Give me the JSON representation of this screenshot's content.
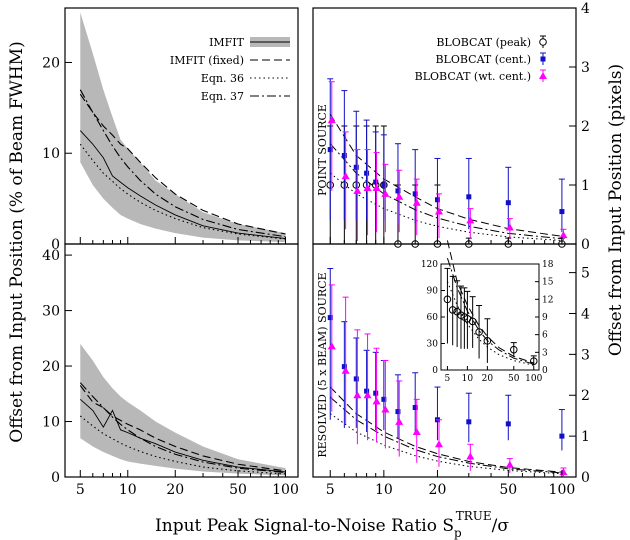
{
  "figure": {
    "xlabel": "Input Peak Signal-to-Noise Ratio S",
    "xlabel_sup": "TRUE",
    "xlabel_sub": "p",
    "xlabel_tail": "/σ",
    "ylabel_left": "Offset from Input Position (% of Beam FWHM)",
    "ylabel_right": "Offset from Input Position (pixels)",
    "panel_label_top": "POINT SOURCE",
    "panel_label_bottom": "RESOLVED (5 x BEAM) SOURCE",
    "x_ticks": [
      "5",
      "10",
      "20",
      "50",
      "100"
    ]
  },
  "colors": {
    "band": "#b8b8b8",
    "cent": "#1010c8",
    "wtcent": "#ff00ff",
    "peak": "#000000"
  },
  "chart_data": [
    {
      "type": "line",
      "panel": "top-left",
      "x_scale": "log",
      "xlim": [
        4,
        120
      ],
      "ylim": [
        0,
        26
      ],
      "y_ticks": [
        "0",
        "10",
        "20"
      ],
      "legend": [
        {
          "label": "IMFIT",
          "style": "band"
        },
        {
          "label": "IMFIT (fixed)",
          "style": "dashed"
        },
        {
          "label": "Eqn. 36",
          "style": "dotted"
        },
        {
          "label": "Eqn. 37",
          "style": "dashdot"
        }
      ],
      "x": [
        5,
        6,
        7,
        8,
        9,
        10,
        12,
        15,
        20,
        30,
        50,
        100
      ],
      "band_lower": [
        9,
        6.5,
        5,
        4,
        3.2,
        2.8,
        2.2,
        1.7,
        1.2,
        0.7,
        0.4,
        0.2
      ],
      "band_upper": [
        25.5,
        21,
        17,
        14,
        11.5,
        10.5,
        9,
        7,
        5.5,
        3.5,
        2.2,
        1.2
      ],
      "series": [
        {
          "name": "IMFIT",
          "style": "solid",
          "values": [
            12.5,
            11,
            9.5,
            7.5,
            6.8,
            6.2,
            5.3,
            4.3,
            3.2,
            2,
            1.2,
            0.6
          ]
        },
        {
          "name": "IMFIT (fixed)",
          "style": "dashed",
          "values": [
            16.5,
            14.5,
            13,
            12,
            11,
            10.5,
            9,
            7.3,
            5.5,
            3.7,
            2.2,
            1.1
          ]
        },
        {
          "name": "Eqn. 36",
          "style": "dotted",
          "values": [
            11,
            9.2,
            7.8,
            6.9,
            6.1,
            5.5,
            4.6,
            3.7,
            2.8,
            1.8,
            1.1,
            0.55
          ]
        },
        {
          "name": "Eqn. 37",
          "style": "dashdot",
          "values": [
            17,
            14.5,
            12.5,
            10.8,
            9.5,
            8.5,
            7,
            5.5,
            4.1,
            2.7,
            1.6,
            0.8
          ]
        }
      ]
    },
    {
      "type": "scatter",
      "panel": "top-right",
      "x_scale": "log",
      "xlim": [
        4,
        120
      ],
      "ylim": [
        0,
        4
      ],
      "y_ticks": [
        "0",
        "1",
        "2",
        "3",
        "4"
      ],
      "legend": [
        {
          "label": "BLOBCAT (peak)",
          "marker": "open-circle"
        },
        {
          "label": "BLOBCAT (cent.)",
          "marker": "square"
        },
        {
          "label": "BLOBCAT (wt. cent.)",
          "marker": "triangle"
        }
      ],
      "series": [
        {
          "name": "BLOBCAT (peak)",
          "x": [
            5,
            6,
            7,
            8,
            9,
            10,
            12,
            15,
            20,
            30,
            50,
            100
          ],
          "values": [
            1,
            1,
            1,
            1,
            1,
            1,
            0,
            0,
            0,
            0,
            0,
            0
          ],
          "err_low": [
            1,
            1,
            1,
            1,
            1,
            1,
            0,
            0,
            0,
            0,
            0,
            0
          ],
          "err_high": [
            1,
            1,
            1,
            1,
            1,
            1,
            1,
            1,
            1,
            0.1,
            0.1,
            0.1
          ]
        },
        {
          "name": "BLOBCAT (cent.)",
          "x": [
            5,
            6,
            7,
            8,
            9,
            10,
            12,
            15,
            20,
            30,
            50,
            100
          ],
          "values": [
            1.6,
            1.5,
            1.3,
            1.2,
            1.05,
            1,
            0.9,
            0.85,
            0.75,
            0.8,
            0.7,
            0.55
          ],
          "err_low": [
            1.2,
            1.1,
            0.9,
            0.8,
            0.7,
            0.6,
            0.55,
            0.5,
            0.45,
            0.55,
            0.45,
            0.35
          ],
          "err_high": [
            1.2,
            1.1,
            0.95,
            0.9,
            0.85,
            0.85,
            0.8,
            0.75,
            0.7,
            0.65,
            0.6,
            0.55
          ]
        },
        {
          "name": "BLOBCAT (wt. cent.)",
          "x": [
            5.1,
            6.1,
            7.1,
            8.1,
            9.1,
            10.2,
            12.2,
            15.3,
            20.4,
            30.6,
            51,
            102
          ],
          "values": [
            2.1,
            1.15,
            0.9,
            0.95,
            0.95,
            0.85,
            0.8,
            0.7,
            0.55,
            0.4,
            0.28,
            0.15
          ],
          "err_low": [
            1.2,
            0.9,
            0.85,
            0.8,
            0.75,
            0.65,
            0.6,
            0.55,
            0.45,
            0.3,
            0.2,
            0.12
          ],
          "err_high": [
            0.65,
            0.75,
            0.7,
            0.65,
            0.6,
            0.5,
            0.45,
            0.4,
            0.3,
            0.2,
            0.15,
            0.1
          ]
        }
      ],
      "curves": [
        {
          "style": "dashed",
          "values_x": [
            5,
            7,
            10,
            15,
            20,
            30,
            50,
            100
          ],
          "values": [
            2.2,
            1.5,
            1.1,
            0.8,
            0.6,
            0.42,
            0.26,
            0.13
          ]
        },
        {
          "style": "dashdot",
          "values_x": [
            5,
            7,
            10,
            15,
            20,
            30,
            50,
            100
          ],
          "values": [
            1.7,
            1.2,
            0.85,
            0.58,
            0.44,
            0.3,
            0.18,
            0.09
          ]
        },
        {
          "style": "dotted",
          "values_x": [
            5,
            7,
            10,
            15,
            20,
            30,
            50,
            100
          ],
          "values": [
            1.2,
            0.85,
            0.6,
            0.4,
            0.3,
            0.2,
            0.12,
            0.06
          ]
        }
      ]
    },
    {
      "type": "line",
      "panel": "bottom-left",
      "x_scale": "log",
      "xlim": [
        4,
        120
      ],
      "ylim": [
        0,
        42
      ],
      "y_ticks": [
        "0",
        "10",
        "20",
        "30",
        "40"
      ],
      "x": [
        5,
        6,
        7,
        8,
        9,
        10,
        12,
        15,
        20,
        30,
        50,
        100
      ],
      "band_lower": [
        7,
        5.5,
        4.5,
        3.8,
        3.2,
        2.8,
        2.4,
        2,
        1.5,
        1,
        0.6,
        0.3
      ],
      "band_upper": [
        24,
        21,
        18,
        16,
        14.5,
        13.5,
        12,
        10,
        8,
        5.5,
        3.2,
        1.6
      ],
      "series": [
        {
          "name": "IMFIT",
          "style": "solid",
          "values": [
            14,
            12,
            9,
            12,
            8.5,
            8,
            7,
            6,
            4.5,
            3,
            1.8,
            0.9
          ]
        },
        {
          "name": "IMFIT (fixed)",
          "style": "dashed",
          "values": [
            16.5,
            13.5,
            12.5,
            11,
            10.2,
            9.5,
            8.5,
            7,
            5.5,
            3.8,
            2.3,
            1.1
          ]
        },
        {
          "name": "Eqn. 36",
          "style": "dotted",
          "values": [
            11,
            9.2,
            7.8,
            6.9,
            6.1,
            5.5,
            4.6,
            3.7,
            2.8,
            1.8,
            1.1,
            0.55
          ]
        },
        {
          "name": "Eqn. 37",
          "style": "dashdot",
          "values": [
            17,
            14.5,
            12.5,
            10.8,
            9.5,
            8.5,
            7,
            5.5,
            4.1,
            2.7,
            1.6,
            0.8
          ]
        }
      ]
    },
    {
      "type": "scatter",
      "panel": "bottom-right",
      "x_scale": "log",
      "xlim": [
        4,
        120
      ],
      "ylim": [
        0,
        5.7
      ],
      "y_ticks": [
        "0",
        "1",
        "2",
        "3",
        "4",
        "5"
      ],
      "series": [
        {
          "name": "BLOBCAT (cent.)",
          "x": [
            5,
            6,
            7,
            8,
            9,
            10,
            12,
            15,
            20,
            30,
            50,
            100
          ],
          "values": [
            3.9,
            2.7,
            2.4,
            2.1,
            2.05,
            1.9,
            1.6,
            1.7,
            1.4,
            1.35,
            1.3,
            1.0
          ],
          "err_low": [
            2.5,
            1.5,
            1.2,
            1.0,
            0.9,
            0.75,
            0.65,
            0.6,
            0.5,
            0.5,
            0.4,
            0.35
          ],
          "err_high": [
            1.2,
            1.1,
            1.0,
            1.0,
            1.0,
            0.95,
            0.9,
            0.85,
            0.8,
            0.7,
            0.7,
            0.65
          ]
        },
        {
          "name": "BLOBCAT (wt. cent.)",
          "x": [
            5.1,
            6.1,
            7.1,
            8.1,
            9.1,
            10.2,
            12.2,
            15.3,
            20.4,
            30.6,
            51,
            102
          ],
          "values": [
            3.2,
            2.6,
            2.0,
            2.0,
            1.85,
            1.65,
            1.35,
            1.1,
            0.8,
            0.5,
            0.3,
            0.12
          ],
          "err_low": [
            1.6,
            1.3,
            1.2,
            1.1,
            1.0,
            0.95,
            0.85,
            0.75,
            0.55,
            0.35,
            0.2,
            0.1
          ],
          "err_high": [
            1.5,
            1.8,
            1.6,
            1.5,
            1.3,
            1.2,
            1.0,
            0.8,
            0.6,
            0.3,
            0.15,
            0.1
          ]
        }
      ],
      "curves": [
        {
          "style": "dashed",
          "values_x": [
            5,
            7,
            10,
            15,
            20,
            30,
            50,
            100
          ],
          "values": [
            2.2,
            1.55,
            1.1,
            0.75,
            0.57,
            0.38,
            0.23,
            0.12
          ]
        },
        {
          "style": "dashdot",
          "values_x": [
            5,
            7,
            10,
            15,
            20,
            30,
            50,
            100
          ],
          "values": [
            1.95,
            1.4,
            1.0,
            0.67,
            0.5,
            0.34,
            0.2,
            0.1
          ]
        },
        {
          "style": "dotted",
          "values_x": [
            5,
            7,
            10,
            15,
            20,
            30,
            50,
            100
          ],
          "values": [
            1.55,
            1.1,
            0.78,
            0.52,
            0.39,
            0.26,
            0.16,
            0.08
          ]
        }
      ],
      "inset": {
        "xlim": [
          4,
          120
        ],
        "ylim_left": [
          0,
          120
        ],
        "ylim_right": [
          0,
          18
        ],
        "y_ticks_left": [
          "0",
          "30",
          "60",
          "90",
          "120"
        ],
        "y_ticks_right": [
          "0",
          "3",
          "6",
          "9",
          "12",
          "15",
          "18"
        ],
        "x_ticks": [
          "5",
          "10",
          "20",
          "50",
          "100"
        ],
        "series": [
          {
            "name": "BLOBCAT (peak)",
            "x": [
              5,
              6,
              7,
              8,
              9,
              10,
              12,
              15,
              20,
              50,
              100
            ],
            "values": [
              80,
              68,
              66,
              62,
              60,
              58,
              55,
              43,
              33,
              23,
              10
            ],
            "err_low": [
              50,
              40,
              40,
              38,
              36,
              34,
              30,
              30,
              25,
              8,
              5
            ],
            "err_high": [
              35,
              38,
              35,
              33,
              33,
              31,
              28,
              30,
              25,
              8,
              6
            ]
          }
        ],
        "curves": [
          {
            "style": "dashed",
            "values_x": [
              5,
              7,
              10,
              15,
              20,
              30,
              50,
              100
            ],
            "values": [
              22,
              15,
              11,
              7.5,
              5.7,
              3.8,
              2.3,
              1.2
            ]
          },
          {
            "style": "dashdot",
            "values_x": [
              5,
              7,
              10,
              15,
              20,
              30,
              50,
              100
            ],
            "values": [
              19,
              14,
              10,
              6.7,
              5,
              3.4,
              2,
              1
            ]
          },
          {
            "style": "dotted",
            "values_x": [
              5,
              7,
              10,
              15,
              20,
              30,
              50,
              100
            ],
            "values": [
              15,
              11,
              7.8,
              5.2,
              3.9,
              2.6,
              1.6,
              0.8
            ]
          }
        ]
      }
    }
  ]
}
